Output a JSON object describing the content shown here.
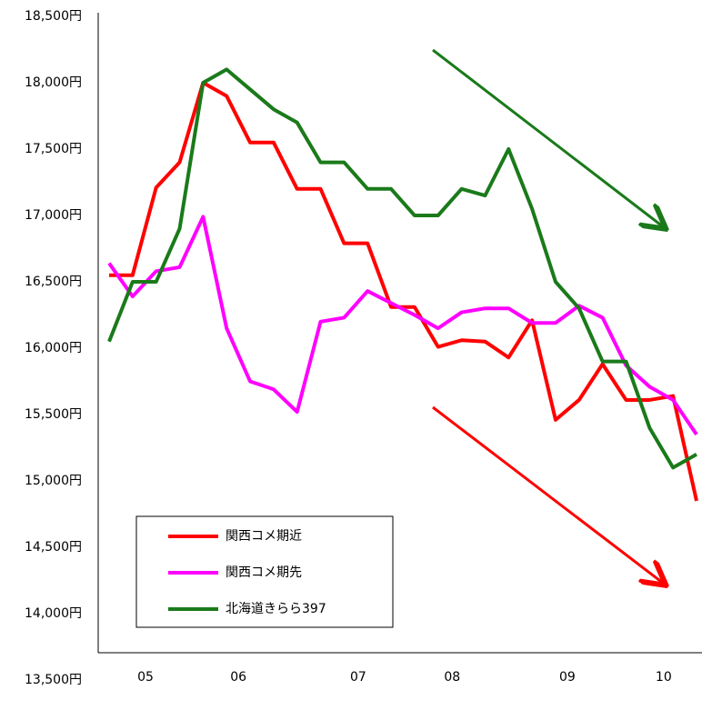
{
  "chart_data": {
    "type": "line",
    "x": [
      0,
      1,
      2,
      3,
      4,
      5,
      6,
      7,
      8,
      9,
      10,
      11,
      12,
      13,
      14,
      15,
      16,
      17,
      18,
      19,
      20,
      21,
      22,
      23,
      24,
      25
    ],
    "xlim": [
      0,
      25
    ],
    "xticks": [
      {
        "value": 1.55,
        "label": "05"
      },
      {
        "value": 5.5,
        "label": "06"
      },
      {
        "value": 10.6,
        "label": "07"
      },
      {
        "value": 14.6,
        "label": "08"
      },
      {
        "value": 19.5,
        "label": "09"
      },
      {
        "value": 23.6,
        "label": "10"
      }
    ],
    "ylim": [
      13500,
      18500
    ],
    "yticks": [
      {
        "value": 13500,
        "label": "13,500円"
      },
      {
        "value": 14000,
        "label": "14,000円"
      },
      {
        "value": 14500,
        "label": "14,500円"
      },
      {
        "value": 15000,
        "label": "15,000円"
      },
      {
        "value": 15500,
        "label": "15,500円"
      },
      {
        "value": 16000,
        "label": "16,000円"
      },
      {
        "value": 16500,
        "label": "16,500円"
      },
      {
        "value": 17000,
        "label": "17,000円"
      },
      {
        "value": 17500,
        "label": "17,500円"
      },
      {
        "value": 18000,
        "label": "18,000円"
      },
      {
        "value": 18500,
        "label": "18,500円"
      }
    ],
    "series": [
      {
        "name": "関西コメ期近",
        "color": "#ff0000",
        "values": [
          16550,
          16550,
          17210,
          17400,
          18000,
          17900,
          17550,
          17550,
          17200,
          17200,
          16790,
          16790,
          16310,
          16310,
          16010,
          16060,
          16050,
          15930,
          16210,
          15460,
          15610,
          15880,
          15610,
          15610,
          15640,
          14850
        ]
      },
      {
        "name": "関西コメ期先",
        "color": "#ff00ff",
        "values": [
          16640,
          16390,
          16580,
          16610,
          16990,
          16150,
          15750,
          15690,
          15520,
          16200,
          16230,
          16430,
          16340,
          16250,
          16150,
          16270,
          16300,
          16300,
          16190,
          16190,
          16320,
          16230,
          15870,
          15710,
          15610,
          15350
        ]
      },
      {
        "name": "北海道きらら397",
        "color": "#1a7a1a",
        "values": [
          16050,
          16500,
          16500,
          16900,
          18000,
          18100,
          17950,
          17800,
          17700,
          17400,
          17400,
          17200,
          17200,
          17000,
          17000,
          17200,
          17150,
          17500,
          17050,
          16500,
          16300,
          15900,
          15900,
          15400,
          15100,
          15200
        ]
      }
    ]
  }
}
